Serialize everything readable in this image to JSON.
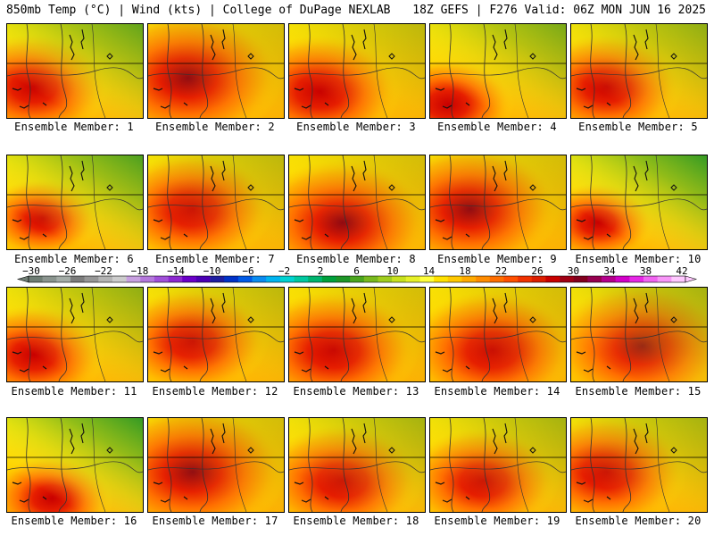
{
  "header": {
    "left": "850mb Temp (°C) | Wind (kts) | College of DuPage NEXLAB",
    "right": "18Z GEFS | F276 Valid: 06Z MON JUN 16 2025"
  },
  "members": [
    {
      "label": "Ensemble Member: 1"
    },
    {
      "label": "Ensemble Member: 2"
    },
    {
      "label": "Ensemble Member: 3"
    },
    {
      "label": "Ensemble Member: 4"
    },
    {
      "label": "Ensemble Member: 5"
    },
    {
      "label": "Ensemble Member: 6"
    },
    {
      "label": "Ensemble Member: 7"
    },
    {
      "label": "Ensemble Member: 8"
    },
    {
      "label": "Ensemble Member: 9"
    },
    {
      "label": "Ensemble Member: 10"
    },
    {
      "label": "Ensemble Member: 11"
    },
    {
      "label": "Ensemble Member: 12"
    },
    {
      "label": "Ensemble Member: 13"
    },
    {
      "label": "Ensemble Member: 14"
    },
    {
      "label": "Ensemble Member: 15"
    },
    {
      "label": "Ensemble Member: 16"
    },
    {
      "label": "Ensemble Member: 17"
    },
    {
      "label": "Ensemble Member: 18"
    },
    {
      "label": "Ensemble Member: 19"
    },
    {
      "label": "Ensemble Member: 20"
    }
  ],
  "colorbar": {
    "labels": [
      "−30",
      "−26",
      "−22",
      "−18",
      "−14",
      "−10",
      "−6",
      "−2",
      "2",
      "6",
      "10",
      "14",
      "18",
      "22",
      "26",
      "30",
      "34",
      "38",
      "42"
    ],
    "colors": [
      "#6f7d74",
      "#8a948e",
      "#a4aca7",
      "#7c7c7c",
      "#969696",
      "#b4b4b4",
      "#cccccc",
      "#c8a0e0",
      "#b478dc",
      "#a050d8",
      "#8c28d0",
      "#6a00c8",
      "#4b00b4",
      "#1e1ea0",
      "#0032c8",
      "#005ae6",
      "#0a8cf0",
      "#00b4f0",
      "#00d2d2",
      "#00c8a0",
      "#00b46e",
      "#00a03c",
      "#1e9628",
      "#4ba51e",
      "#78b91e",
      "#a0cd1e",
      "#c8e11e",
      "#e6f028",
      "#ffff3c",
      "#ffe100",
      "#ffc800",
      "#ffaa00",
      "#ff8c00",
      "#ff6e00",
      "#ff5000",
      "#f03200",
      "#dc1e00",
      "#c80000",
      "#a00014",
      "#82001e",
      "#960050",
      "#b4008c",
      "#d200c8",
      "#e628e6",
      "#f064f0",
      "#f896f8",
      "#ffc8ff"
    ]
  }
}
